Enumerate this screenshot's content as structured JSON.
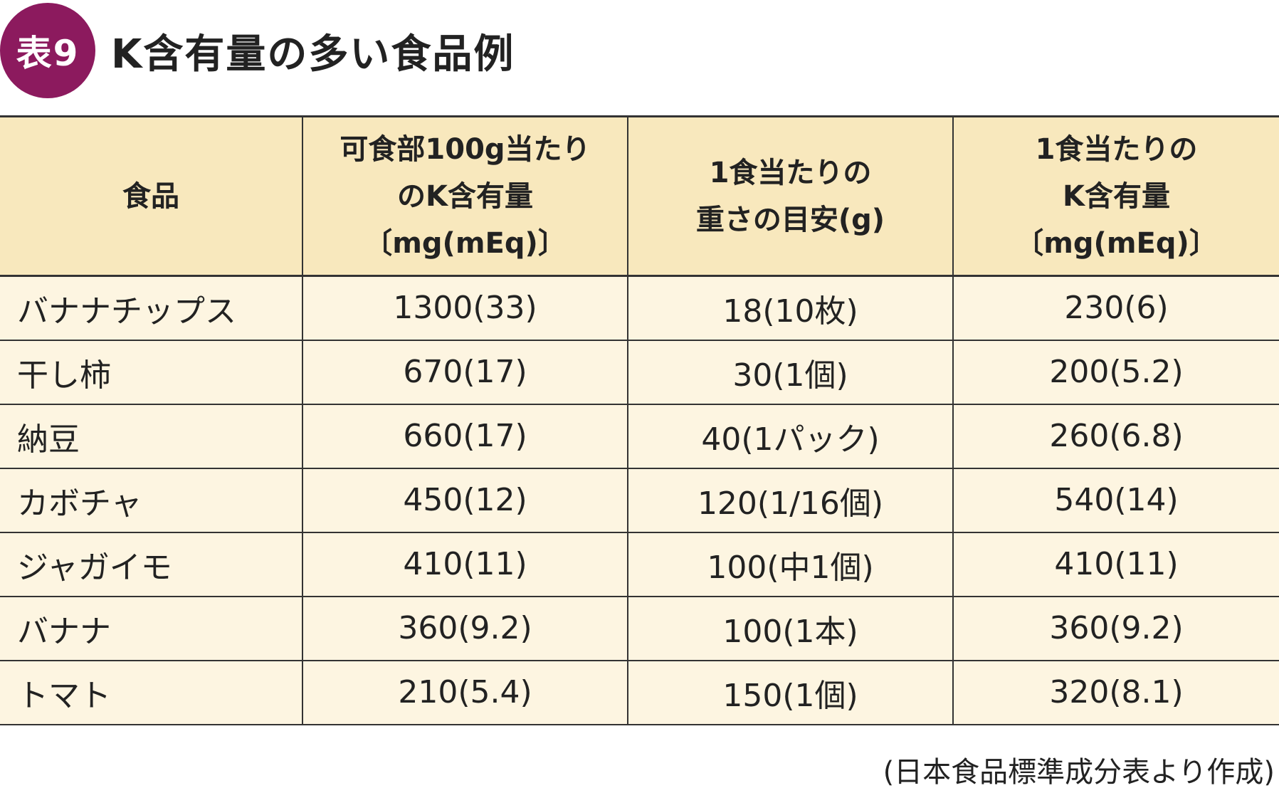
{
  "title": {
    "badge": "表9",
    "text": "K含有量の多い食品例"
  },
  "table": {
    "headers": [
      {
        "lines": [
          "食品"
        ]
      },
      {
        "lines": [
          "可食部100g当たり",
          "のK含有量",
          "〔mg(mEq)〕"
        ]
      },
      {
        "lines": [
          "1食当たりの",
          "重さの目安(g)"
        ]
      },
      {
        "lines": [
          "1食当たりの",
          "K含有量",
          "〔mg(mEq)〕"
        ]
      }
    ],
    "rows": [
      [
        "バナナチップス",
        "1300(33)",
        "18(10枚)",
        "230(6)"
      ],
      [
        "干し柿",
        "670(17)",
        "30(1個)",
        "200(5.2)"
      ],
      [
        "納豆",
        "660(17)",
        "40(1パック)",
        "260(6.8)"
      ],
      [
        "カボチャ",
        "450(12)",
        "120(1/16個)",
        "540(14)"
      ],
      [
        "ジャガイモ",
        "410(11)",
        "100(中1個)",
        "410(11)"
      ],
      [
        "バナナ",
        "360(9.2)",
        "100(1本)",
        "360(9.2)"
      ],
      [
        "トマト",
        "210(5.4)",
        "150(1個)",
        "320(8.1)"
      ]
    ]
  },
  "source": "(日本食品標準成分表より作成)",
  "colors": {
    "badge": "#8c1a5e",
    "header_bg": "#f8e8bd",
    "body_bg": "#fdf5e1",
    "border": "#333333"
  }
}
